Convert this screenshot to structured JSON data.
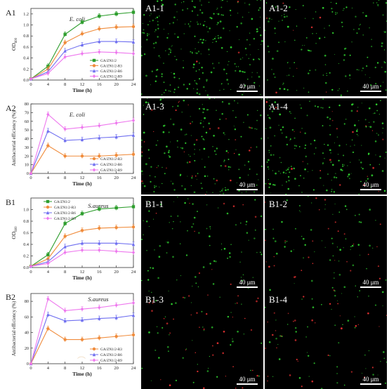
{
  "chart_data": [
    {
      "panel": "A1",
      "type": "line",
      "organism": "E. coli",
      "xlabel": "Time (h)",
      "ylabel": "OD600",
      "xlim": [
        0,
        24
      ],
      "ylim": [
        0,
        1.3
      ],
      "xticks": [
        "0",
        "4",
        "8",
        "12",
        "16",
        "20",
        "24"
      ],
      "yticks": [
        "0.0",
        "0.2",
        "0.4",
        "0.6",
        "0.8",
        "1.0",
        "1.2"
      ],
      "x": [
        0,
        4,
        8,
        12,
        16,
        20,
        24
      ],
      "legend": "bottom-right",
      "series": [
        {
          "name": "GA/ZN1/2",
          "color": "#2e9e2e",
          "marker": "square",
          "values": [
            0.02,
            0.25,
            0.83,
            1.05,
            1.16,
            1.2,
            1.23
          ]
        },
        {
          "name": "GA/ZN1/2-R3",
          "color": "#f08c3c",
          "marker": "circle",
          "values": [
            0.02,
            0.2,
            0.68,
            0.84,
            0.93,
            0.96,
            0.97
          ]
        },
        {
          "name": "GA/ZN1/2-R6",
          "color": "#6f6ff0",
          "marker": "triangle",
          "values": [
            0.02,
            0.15,
            0.53,
            0.64,
            0.7,
            0.7,
            0.69
          ]
        },
        {
          "name": "GA/ZN1/2-R9",
          "color": "#ee78ee",
          "marker": "diamond",
          "values": [
            0.02,
            0.12,
            0.42,
            0.48,
            0.51,
            0.5,
            0.48
          ]
        }
      ]
    },
    {
      "panel": "A2",
      "type": "line",
      "organism": "E. coli",
      "xlabel": "Time (h)",
      "ylabel": "Antibacterial efficiency (%)",
      "xlim": [
        0,
        24
      ],
      "ylim": [
        0,
        80
      ],
      "xticks": [
        "0",
        "4",
        "8",
        "12",
        "16",
        "20",
        "24"
      ],
      "yticks": [
        "0",
        "10",
        "20",
        "30",
        "40",
        "50",
        "60",
        "70",
        "80"
      ],
      "x": [
        0,
        4,
        8,
        12,
        16,
        20,
        24
      ],
      "legend": "bottom-right",
      "series": [
        {
          "name": "GA/ZN1/2-R3",
          "color": "#f08c3c",
          "marker": "circle",
          "values": [
            0,
            32,
            20,
            20,
            20,
            21,
            22
          ]
        },
        {
          "name": "GA/ZN1/2-R6",
          "color": "#6f6ff0",
          "marker": "triangle",
          "values": [
            0,
            49,
            38,
            39,
            41,
            42,
            44
          ]
        },
        {
          "name": "GA/ZN1/2-R9",
          "color": "#ee78ee",
          "marker": "diamond",
          "values": [
            0,
            68,
            51,
            53,
            55,
            58,
            61
          ]
        }
      ]
    },
    {
      "panel": "B1",
      "type": "line",
      "organism": "S.aureus",
      "xlabel": "Time (h)",
      "ylabel": "OD600",
      "xlim": [
        0,
        24
      ],
      "ylim": [
        0,
        1.2
      ],
      "xticks": [
        "0",
        "4",
        "8",
        "12",
        "16",
        "20",
        "24"
      ],
      "yticks": [
        "0.0",
        "0.2",
        "0.4",
        "0.6",
        "0.8",
        "1.0"
      ],
      "x": [
        0,
        4,
        8,
        12,
        16,
        20,
        24
      ],
      "legend": "top-left",
      "series": [
        {
          "name": "GA/ZN1/2",
          "color": "#2e9e2e",
          "marker": "square",
          "values": [
            0.02,
            0.22,
            0.76,
            0.93,
            1.01,
            1.03,
            1.05
          ]
        },
        {
          "name": "GA/ZN1/2-R3",
          "color": "#f08c3c",
          "marker": "circle",
          "values": [
            0.02,
            0.15,
            0.54,
            0.64,
            0.68,
            0.69,
            0.7
          ]
        },
        {
          "name": "GA/ZN1/2-R6",
          "color": "#6f6ff0",
          "marker": "triangle",
          "values": [
            0.02,
            0.1,
            0.36,
            0.42,
            0.42,
            0.42,
            0.4
          ]
        },
        {
          "name": "GA/ZN1/2-R9",
          "color": "#ee78ee",
          "marker": "diamond",
          "values": [
            0.02,
            0.07,
            0.26,
            0.3,
            0.3,
            0.28,
            0.26
          ]
        }
      ]
    },
    {
      "panel": "B2",
      "type": "line",
      "organism": "S.aureus",
      "xlabel": "Time (h)",
      "ylabel": "Antibacterial efficiency (%)",
      "xlim": [
        0,
        24
      ],
      "ylim": [
        0,
        90
      ],
      "xticks": [
        "0",
        "4",
        "8",
        "12",
        "16",
        "20",
        "24"
      ],
      "yticks": [
        "0",
        "20",
        "40",
        "60",
        "80"
      ],
      "x": [
        0,
        4,
        8,
        12,
        16,
        20,
        24
      ],
      "legend": "bottom-right",
      "series": [
        {
          "name": "GA/ZN1/2-R3",
          "color": "#f08c3c",
          "marker": "circle",
          "values": [
            0,
            45,
            31,
            31,
            33,
            35,
            37
          ]
        },
        {
          "name": "GA/ZN1/2-R6",
          "color": "#6f6ff0",
          "marker": "triangle",
          "values": [
            0,
            63,
            55,
            56,
            58,
            59,
            62
          ]
        },
        {
          "name": "GA/ZN1/2-R9",
          "color": "#ee78ee",
          "marker": "diamond",
          "values": [
            0,
            83,
            68,
            70,
            72,
            75,
            78
          ]
        }
      ]
    }
  ],
  "micrographs": [
    {
      "label": "A1-1",
      "green": 260,
      "red": 3
    },
    {
      "label": "A1-2",
      "green": 150,
      "red": 8
    },
    {
      "label": "A1-3",
      "green": 180,
      "red": 30
    },
    {
      "label": "A1-4",
      "green": 200,
      "red": 22
    },
    {
      "label": "B1-1",
      "green": 90,
      "red": 10
    },
    {
      "label": "B1-2",
      "green": 70,
      "red": 30
    },
    {
      "label": "B1-3",
      "green": 45,
      "red": 40
    },
    {
      "label": "B1-4",
      "green": 55,
      "red": 35
    }
  ],
  "scale_bar_label": "40 μm",
  "colors": {
    "green_cells": "#2fd02f",
    "red_cells": "#e23030",
    "panel_bg": "#000000"
  }
}
